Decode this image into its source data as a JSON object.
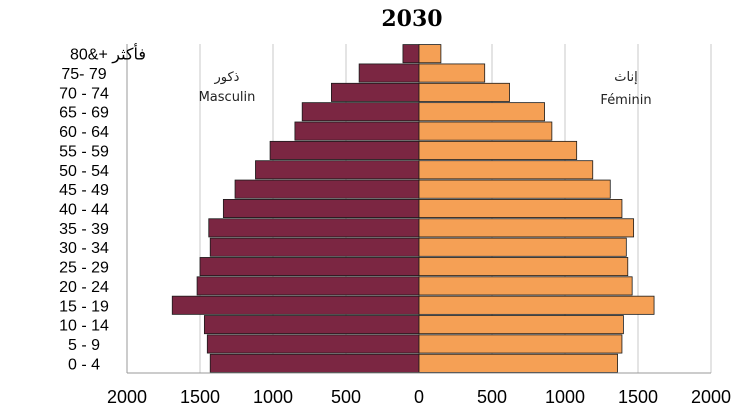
{
  "chart_data": {
    "type": "bar",
    "orientation": "horizontal-population-pyramid",
    "title": "2030",
    "categories": [
      "0 - 4",
      "5 - 9",
      "10 - 14",
      "15 - 19",
      "20 - 24",
      "25 - 29",
      "30 - 34",
      "35 - 39",
      "40 - 44",
      "45 - 49",
      "50 - 54",
      "55 - 59",
      "60 - 64",
      "65 - 69",
      "70 - 74",
      "75- 79",
      "80&+ فأكثر"
    ],
    "series": [
      {
        "name": "Masculin",
        "name_ar": "ذكور",
        "color": "#7B2642",
        "values": [
          1430,
          1450,
          1470,
          1690,
          1520,
          1500,
          1430,
          1440,
          1340,
          1260,
          1120,
          1020,
          850,
          800,
          600,
          410,
          110
        ]
      },
      {
        "name": "Féminin",
        "name_ar": "إناث",
        "color": "#F5A055",
        "values": [
          1360,
          1390,
          1400,
          1610,
          1460,
          1430,
          1420,
          1470,
          1390,
          1310,
          1190,
          1080,
          910,
          860,
          620,
          450,
          150
        ]
      }
    ],
    "xlim": [
      -2000,
      2000
    ],
    "xticks": [
      "2000",
      "1500",
      "1000",
      "500",
      "0",
      "500",
      "1000",
      "1500",
      "2000"
    ],
    "grid": true
  }
}
